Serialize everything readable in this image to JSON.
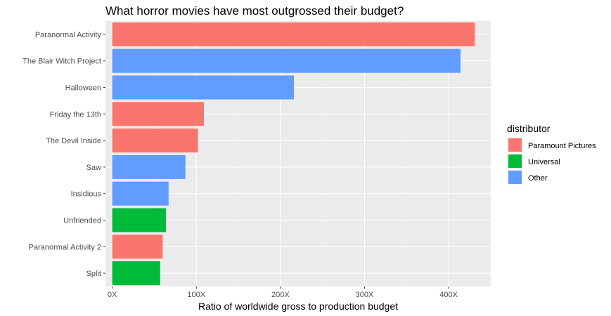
{
  "chart_data": {
    "type": "bar",
    "orientation": "horizontal",
    "title": "What horror movies have most outgrossed their budget?",
    "xlabel": "Ratio of worldwide gross to production budget",
    "ylabel": "",
    "xlim": [
      -8,
      450
    ],
    "x_ticks": [
      0,
      100,
      200,
      300,
      400
    ],
    "x_tick_labels": [
      "0X",
      "100X",
      "200X",
      "300X",
      "400X"
    ],
    "grid": true,
    "legend": {
      "title": "distributor",
      "position": "right",
      "entries": [
        {
          "label": "Paramount Pictures",
          "color": "#F8766D"
        },
        {
          "label": "Universal",
          "color": "#00BA38"
        },
        {
          "label": "Other",
          "color": "#619CFF"
        }
      ]
    },
    "categories": [
      "Paranormal Activity",
      "The Blair Witch Project",
      "Halloween",
      "Friday the 13th",
      "The Devil Inside",
      "Saw",
      "Insidious",
      "Unfriended",
      "Paranormal Activity 2",
      "Split"
    ],
    "values": [
      431,
      414,
      216,
      109,
      102,
      87,
      67,
      64,
      60,
      57
    ],
    "distributor": [
      "Paramount Pictures",
      "Other",
      "Other",
      "Paramount Pictures",
      "Paramount Pictures",
      "Other",
      "Other",
      "Universal",
      "Paramount Pictures",
      "Universal"
    ]
  }
}
